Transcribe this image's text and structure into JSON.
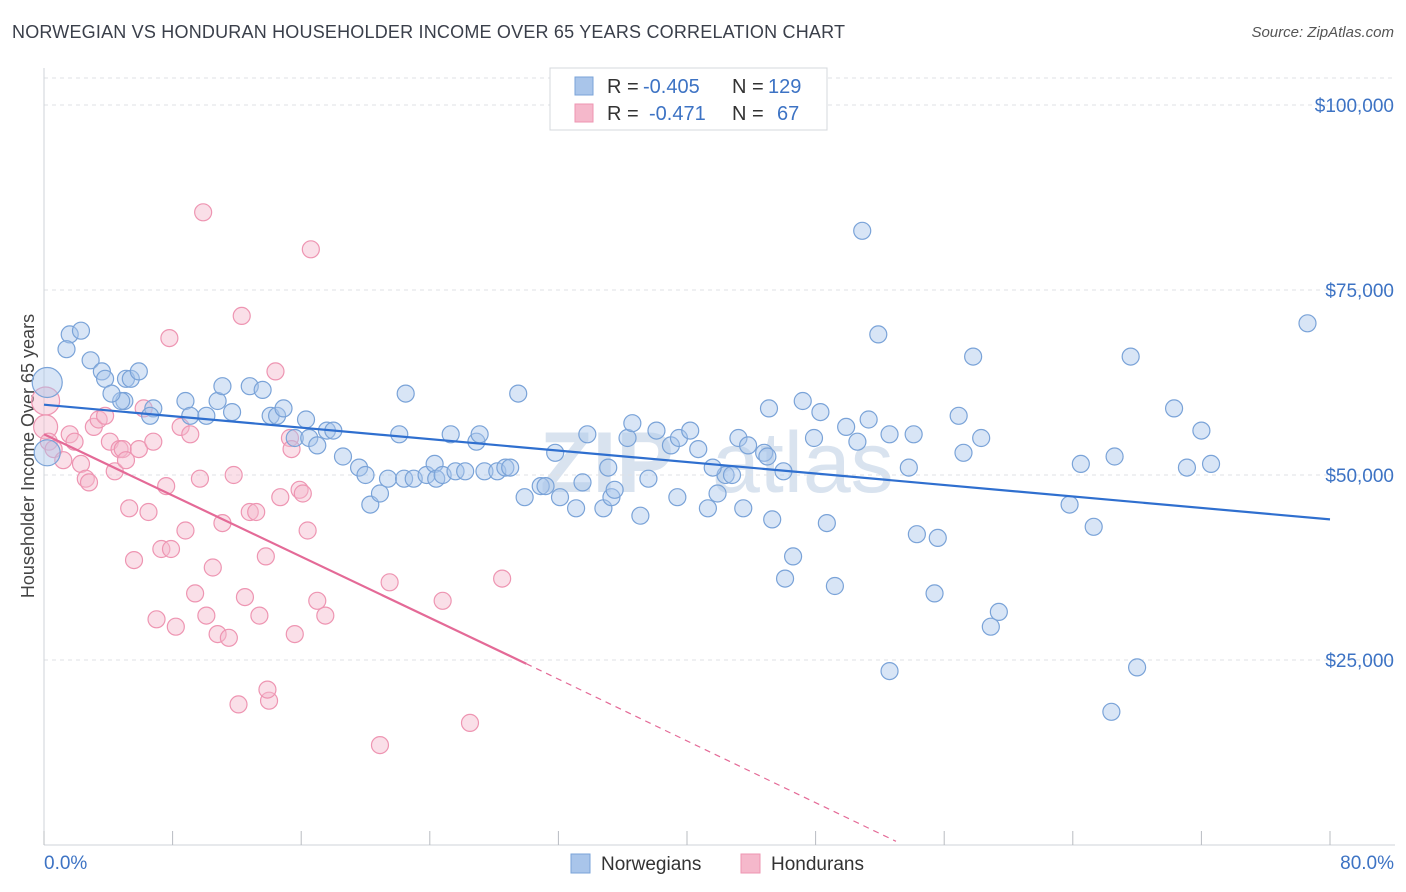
{
  "header": {
    "title": "NORWEGIAN VS HONDURAN HOUSEHOLDER INCOME OVER 65 YEARS CORRELATION CHART",
    "source": "Source: ZipAtlas.com"
  },
  "watermark": {
    "zip": "ZIP",
    "atlas": "atlas"
  },
  "legend_top": {
    "rows": [
      {
        "r_label": "R =",
        "r_value": "-0.405",
        "n_label": "N =",
        "n_value": "129"
      },
      {
        "r_label": "R =",
        "r_value": "-0.471",
        "n_label": "N =",
        "n_value": "67"
      }
    ]
  },
  "legend_bottom": {
    "items": [
      {
        "label": "Norwegians"
      },
      {
        "label": "Hondurans"
      }
    ]
  },
  "colors": {
    "norwegian_fill": "#a9c5ea",
    "norwegian_stroke": "#7aa3d8",
    "norwegian_line": "#2f6fcf",
    "honduran_fill": "#f5b8cb",
    "honduran_stroke": "#ee95b2",
    "honduran_line": "#e46a97",
    "label_blue": "#3d73c4"
  },
  "chart_data": {
    "type": "scatter",
    "title": "NORWEGIAN VS HONDURAN HOUSEHOLDER INCOME OVER 65 YEARS CORRELATION CHART",
    "xlabel": "",
    "ylabel": "Householder Income Over 65 years",
    "xlim": [
      0,
      80
    ],
    "ylim": [
      0,
      105000
    ],
    "x_tick_labels": [
      "0.0%",
      "80.0%"
    ],
    "y_ticks": [
      25000,
      50000,
      75000,
      100000
    ],
    "y_tick_labels": [
      "$25,000",
      "$50,000",
      "$75,000",
      "$100,000"
    ],
    "grid": true,
    "legend_position": "top-center",
    "series": [
      {
        "name": "Norwegians",
        "r": -0.405,
        "n": 129,
        "trend": {
          "x": [
            0,
            80
          ],
          "y": [
            59500,
            44000
          ]
        },
        "points": [
          [
            0.2,
            62500
          ],
          [
            0.2,
            53000
          ],
          [
            1.6,
            69000
          ],
          [
            1.4,
            67000
          ],
          [
            2.3,
            69500
          ],
          [
            2.9,
            65500
          ],
          [
            3.6,
            64000
          ],
          [
            3.8,
            63000
          ],
          [
            5.1,
            63000
          ],
          [
            5.4,
            63000
          ],
          [
            5.9,
            64000
          ],
          [
            5.0,
            60000
          ],
          [
            4.8,
            60000
          ],
          [
            4.2,
            61000
          ],
          [
            6.8,
            59000
          ],
          [
            6.6,
            58000
          ],
          [
            8.8,
            60000
          ],
          [
            9.1,
            58000
          ],
          [
            10.1,
            58000
          ],
          [
            10.8,
            60000
          ],
          [
            11.1,
            62000
          ],
          [
            11.7,
            58500
          ],
          [
            12.8,
            62000
          ],
          [
            13.6,
            61500
          ],
          [
            14.1,
            58000
          ],
          [
            14.5,
            58000
          ],
          [
            14.9,
            59000
          ],
          [
            15.6,
            55000
          ],
          [
            16.3,
            57500
          ],
          [
            16.5,
            55000
          ],
          [
            17.0,
            54000
          ],
          [
            17.6,
            56000
          ],
          [
            18.0,
            56000
          ],
          [
            18.6,
            52500
          ],
          [
            19.6,
            51000
          ],
          [
            20.0,
            50000
          ],
          [
            20.3,
            46000
          ],
          [
            20.9,
            47500
          ],
          [
            21.4,
            49500
          ],
          [
            22.1,
            55500
          ],
          [
            22.4,
            49500
          ],
          [
            23.0,
            49500
          ],
          [
            22.5,
            61000
          ],
          [
            23.8,
            50000
          ],
          [
            24.3,
            51500
          ],
          [
            24.4,
            49500
          ],
          [
            24.8,
            50000
          ],
          [
            25.3,
            55500
          ],
          [
            25.6,
            50500
          ],
          [
            26.2,
            50500
          ],
          [
            26.9,
            54500
          ],
          [
            27.1,
            55500
          ],
          [
            27.4,
            50500
          ],
          [
            28.2,
            50500
          ],
          [
            28.7,
            51000
          ],
          [
            29.0,
            51000
          ],
          [
            29.5,
            61000
          ],
          [
            29.9,
            47000
          ],
          [
            30.9,
            48500
          ],
          [
            31.2,
            48500
          ],
          [
            32.1,
            47000
          ],
          [
            31.8,
            53000
          ],
          [
            33.1,
            45500
          ],
          [
            33.5,
            49000
          ],
          [
            33.8,
            55500
          ],
          [
            34.8,
            45500
          ],
          [
            35.3,
            47000
          ],
          [
            35.5,
            48000
          ],
          [
            35.1,
            51000
          ],
          [
            36.3,
            55000
          ],
          [
            36.6,
            57000
          ],
          [
            37.1,
            44500
          ],
          [
            37.6,
            49500
          ],
          [
            38.1,
            56000
          ],
          [
            39.0,
            54000
          ],
          [
            39.5,
            55000
          ],
          [
            39.4,
            47000
          ],
          [
            40.2,
            56000
          ],
          [
            40.7,
            53500
          ],
          [
            41.3,
            45500
          ],
          [
            41.9,
            47500
          ],
          [
            42.4,
            50000
          ],
          [
            41.6,
            51000
          ],
          [
            42.8,
            50000
          ],
          [
            43.2,
            55000
          ],
          [
            43.8,
            54000
          ],
          [
            43.5,
            45500
          ],
          [
            44.8,
            53000
          ],
          [
            45.1,
            59000
          ],
          [
            45.0,
            52500
          ],
          [
            45.3,
            44000
          ],
          [
            46.0,
            50500
          ],
          [
            46.6,
            39000
          ],
          [
            46.1,
            36000
          ],
          [
            47.2,
            60000
          ],
          [
            47.9,
            55000
          ],
          [
            48.3,
            58500
          ],
          [
            48.7,
            43500
          ],
          [
            49.2,
            35000
          ],
          [
            49.9,
            56500
          ],
          [
            50.6,
            54500
          ],
          [
            50.9,
            83000
          ],
          [
            51.3,
            57500
          ],
          [
            51.9,
            69000
          ],
          [
            52.6,
            55500
          ],
          [
            53.8,
            51000
          ],
          [
            54.1,
            55500
          ],
          [
            54.3,
            42000
          ],
          [
            55.6,
            41500
          ],
          [
            55.4,
            34000
          ],
          [
            56.9,
            58000
          ],
          [
            57.2,
            53000
          ],
          [
            57.8,
            66000
          ],
          [
            58.3,
            55000
          ],
          [
            58.9,
            29500
          ],
          [
            59.4,
            31500
          ],
          [
            52.6,
            23500
          ],
          [
            63.8,
            46000
          ],
          [
            64.5,
            51500
          ],
          [
            65.3,
            43000
          ],
          [
            66.6,
            52500
          ],
          [
            67.6,
            66000
          ],
          [
            68.0,
            24000
          ],
          [
            66.4,
            18000
          ],
          [
            70.3,
            59000
          ],
          [
            71.1,
            51000
          ],
          [
            72.0,
            56000
          ],
          [
            72.6,
            51500
          ],
          [
            78.6,
            70500
          ]
        ]
      },
      {
        "name": "Hondurans",
        "r": -0.471,
        "n": 67,
        "trend": {
          "x": [
            0,
            30
          ],
          "y": [
            55500,
            24500
          ]
        },
        "trend_dashed": {
          "x": [
            30,
            53
          ],
          "y": [
            24500,
            500
          ]
        },
        "points": [
          [
            0.1,
            60000
          ],
          [
            0.1,
            56500
          ],
          [
            0.3,
            54500
          ],
          [
            0.6,
            53500
          ],
          [
            1.2,
            52000
          ],
          [
            1.6,
            55500
          ],
          [
            1.9,
            54500
          ],
          [
            2.3,
            51500
          ],
          [
            2.6,
            49500
          ],
          [
            2.8,
            49000
          ],
          [
            3.1,
            56500
          ],
          [
            3.4,
            57500
          ],
          [
            3.8,
            58000
          ],
          [
            4.1,
            54500
          ],
          [
            4.4,
            50500
          ],
          [
            4.7,
            53500
          ],
          [
            4.9,
            53500
          ],
          [
            5.1,
            52000
          ],
          [
            5.3,
            45500
          ],
          [
            5.6,
            38500
          ],
          [
            5.9,
            53500
          ],
          [
            6.2,
            59000
          ],
          [
            6.5,
            45000
          ],
          [
            6.8,
            54500
          ],
          [
            7.0,
            30500
          ],
          [
            7.3,
            40000
          ],
          [
            7.6,
            48500
          ],
          [
            7.9,
            40000
          ],
          [
            7.8,
            68500
          ],
          [
            8.2,
            29500
          ],
          [
            8.5,
            56500
          ],
          [
            8.8,
            42500
          ],
          [
            9.1,
            55500
          ],
          [
            9.4,
            34000
          ],
          [
            9.7,
            49500
          ],
          [
            10.1,
            31000
          ],
          [
            10.5,
            37500
          ],
          [
            10.8,
            28500
          ],
          [
            11.1,
            43500
          ],
          [
            11.5,
            28000
          ],
          [
            11.8,
            50000
          ],
          [
            12.1,
            19000
          ],
          [
            12.3,
            71500
          ],
          [
            12.5,
            33500
          ],
          [
            12.8,
            45000
          ],
          [
            13.2,
            45000
          ],
          [
            13.4,
            31000
          ],
          [
            13.8,
            39000
          ],
          [
            14.0,
            19500
          ],
          [
            14.4,
            64000
          ],
          [
            14.7,
            47000
          ],
          [
            15.3,
            55000
          ],
          [
            15.6,
            28500
          ],
          [
            15.9,
            48000
          ],
          [
            16.4,
            42500
          ],
          [
            17.0,
            33000
          ],
          [
            17.5,
            31000
          ],
          [
            16.6,
            80500
          ],
          [
            16.1,
            47500
          ],
          [
            15.4,
            53500
          ],
          [
            20.9,
            13500
          ],
          [
            21.5,
            35500
          ],
          [
            24.8,
            33000
          ],
          [
            26.5,
            16500
          ],
          [
            28.5,
            36000
          ],
          [
            9.9,
            85500
          ],
          [
            13.9,
            21000
          ]
        ]
      }
    ]
  }
}
